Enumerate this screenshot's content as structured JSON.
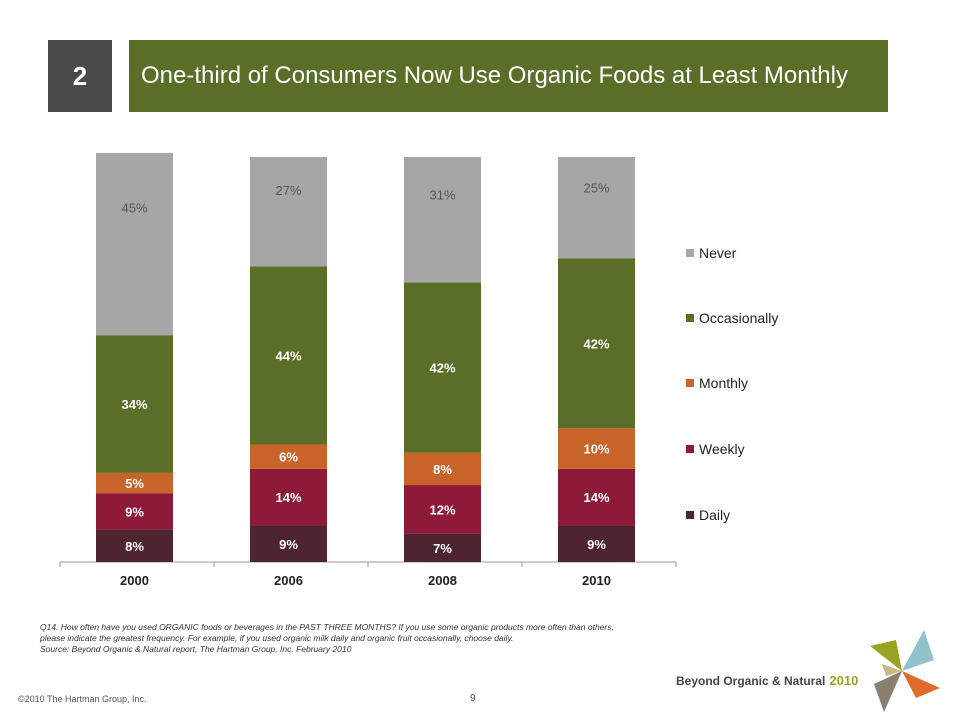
{
  "slide": {
    "number": "2",
    "title": "One-third of Consumers Now Use Organic Foods at Least Monthly"
  },
  "chart_data": {
    "type": "bar",
    "stacked": true,
    "categories": [
      "2000",
      "2006",
      "2008",
      "2010"
    ],
    "series": [
      {
        "name": "Daily",
        "values": [
          8,
          9,
          7,
          9
        ],
        "labels": [
          "8%",
          "9%",
          "7%",
          "9%"
        ],
        "color": "#4d2430"
      },
      {
        "name": "Weekly",
        "values": [
          9,
          14,
          12,
          14
        ],
        "labels": [
          "9%",
          "14%",
          "12%",
          "14%"
        ],
        "color": "#8e1a3a"
      },
      {
        "name": "Monthly",
        "values": [
          5,
          6,
          8,
          10
        ],
        "labels": [
          "5%",
          "6%",
          "8%",
          "10%"
        ],
        "color": "#c8642a"
      },
      {
        "name": "Occasionally",
        "values": [
          34,
          44,
          42,
          42
        ],
        "labels": [
          "34%",
          "44%",
          "42%",
          "42%"
        ],
        "color": "#5a6e28"
      },
      {
        "name": "Never",
        "values": [
          45,
          27,
          31,
          25
        ],
        "labels": [
          "45%",
          "27%",
          "31%",
          "25%"
        ],
        "color": "#a6a6a6"
      }
    ],
    "legend_order": [
      "Never",
      "Occasionally",
      "Monthly",
      "Weekly",
      "Daily"
    ],
    "legend_position": "right",
    "grid": false,
    "ylim": [
      0,
      100
    ]
  },
  "footnote": {
    "lines": [
      "Q14. How often have you used ORGANIC foods or beverages in the PAST THREE MONTHS? If you use some organic products more often than others,",
      "please indicate the greatest frequency.  For example, if you used organic milk daily and organic fruit occasionally, choose daily.",
      "Source: Beyond Organic & Natural report, The Hartman Group, Inc. February 2010"
    ]
  },
  "footer": {
    "brand": "Beyond Organic & Natural",
    "brand_year": "2010",
    "copyright": "©2010 The Hartman Group, Inc.",
    "page": "9"
  },
  "colors": {
    "title_bar": "#5a6e28",
    "slide_number_box": "#4a4a4a"
  }
}
